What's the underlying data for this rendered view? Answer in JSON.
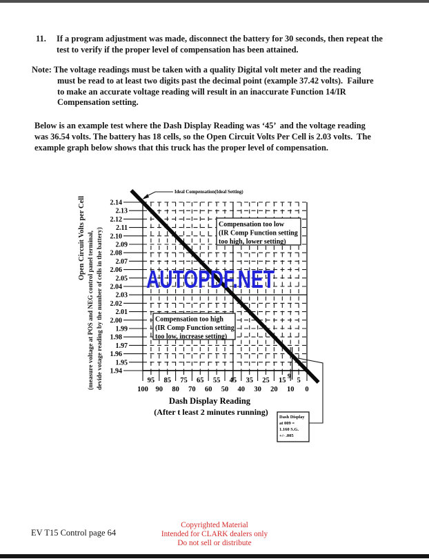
{
  "body": {
    "item_number": "11.",
    "item_lines": [
      "If a program adjustment was made, disconnect the battery for 30 seconds, then repeat the",
      "test to verify if the proper level of compensation has been attained."
    ],
    "note_lines": [
      "Note: The voltage readings must be taken with a quality Digital volt meter and the reading",
      "must be read to at least two digits past the decimal point (example 37.42 volts).  Failure",
      "to make an accurate voltage reading will result in an inaccurate Function 14/IR",
      "Compensation setting."
    ],
    "para_lines": [
      "Below is an example test where the Dash Display Reading was ‘45’  and the voltage reading",
      "was 36.54 volts. The battery has 18 cells, so the Open Circuit Volts Per Cell is 2.03 volts.  The",
      "example graph below shows that this truck has the proper level of compensation."
    ]
  },
  "watermark": {
    "text": "AUTOPDF.NET",
    "color": "#2023d7"
  },
  "footer": {
    "left": "EV T15 Control page 64",
    "center_color": "#d42a2a",
    "center_lines": [
      "Copyrighted Material",
      "Intended for CLARK dealers only",
      "Do not sell or distribute"
    ]
  },
  "chart_data": {
    "type": "line",
    "title": "",
    "xlabel": "Dash Display Reading",
    "xlabel_note": "(After t least 2 minutes running)",
    "ylabel": "Open Circuit Volts per Cell",
    "ylabel_note1": "(measure voltage at POS and NEG control panel terminal,",
    "ylabel_note2": "devide votage reading by the number of cells in the battery)",
    "x_axis_reversed": true,
    "xlim": [
      100,
      0
    ],
    "ylim": [
      1.94,
      2.14
    ],
    "grid": "dashed",
    "x_ticks_major": [
      100,
      90,
      80,
      70,
      60,
      50,
      40,
      30,
      20,
      10,
      0
    ],
    "x_ticks_minor": [
      95,
      85,
      75,
      65,
      55,
      45,
      35,
      25,
      15,
      5
    ],
    "y_tick_labels": [
      "2.14",
      "2.13",
      "2.12",
      "2.11",
      "2.10",
      "2.09",
      "2.08",
      "2.07",
      "2.06",
      "2.05",
      "2.04",
      "2.03",
      "2.02",
      "2.01",
      "2.00",
      "1.99",
      "1.98",
      "1.97",
      "1.96",
      "1.95",
      "1.94"
    ],
    "series": [
      {
        "name": "Ideal Compensation(Ideal Setting)",
        "points": [
          [
            100,
            2.14
          ],
          [
            0,
            1.94
          ]
        ]
      }
    ],
    "example_point": {
      "x": 45,
      "y": 2.03
    },
    "extra_x_value": 9,
    "extra_x_label": "9",
    "annotations": {
      "too_low_lines": [
        "Compensation too low",
        "(IR Comp Function setting",
        "too high, lower setting)"
      ],
      "too_high_lines": [
        "Compensation too high",
        "(IR Comp Function setting",
        "too low, increase setting)"
      ],
      "callout_lines": [
        "Dash Display",
        "at 009 =",
        "1.160 S.G.",
        "+/- .005"
      ]
    }
  }
}
